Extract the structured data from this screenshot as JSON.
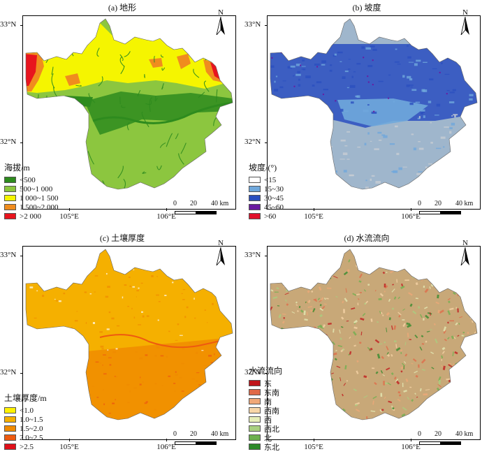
{
  "axes": {
    "lat_labels": [
      "33°N",
      "32°N"
    ],
    "lon_labels": [
      "105°E",
      "106°E"
    ]
  },
  "north_label": "N",
  "scale": {
    "labels": [
      "0",
      "20",
      "40 km"
    ]
  },
  "panels": [
    {
      "id": "a",
      "title": "(a) 地形",
      "legend_title": "海拔/m",
      "style": "elevation",
      "legend": [
        {
          "label": "<500",
          "color": "#2e8b1e"
        },
        {
          "label": "500~1 000",
          "color": "#8cc63f"
        },
        {
          "label": "1 000~1 500",
          "color": "#f5f500"
        },
        {
          "label": "1 500~2 000",
          "color": "#f08c1e"
        },
        {
          "label": ">2 000",
          "color": "#e8141e"
        }
      ]
    },
    {
      "id": "b",
      "title": "(b) 坡度",
      "legend_title": "坡度/(°)",
      "style": "slope",
      "legend": [
        {
          "label": "<15",
          "color": "#ffffff"
        },
        {
          "label": "15~30",
          "color": "#6fa8dc"
        },
        {
          "label": "30~45",
          "color": "#2a4fbf"
        },
        {
          "label": "45~60",
          "color": "#6a1aa0"
        },
        {
          "label": ">60",
          "color": "#e0102a"
        }
      ]
    },
    {
      "id": "c",
      "title": "(c) 土壤厚度",
      "legend_title": "土壤厚度/m",
      "style": "soil",
      "legend": [
        {
          "label": "<1.0",
          "color": "#fff200"
        },
        {
          "label": "1.0~1.5",
          "color": "#f5b000"
        },
        {
          "label": "1.5~2.0",
          "color": "#f08a00"
        },
        {
          "label": "2.0~2.5",
          "color": "#ee5a10"
        },
        {
          "label": ">2.5",
          "color": "#e0101a"
        }
      ]
    },
    {
      "id": "d",
      "title": "(d) 水流流向",
      "legend_title": "水流流向",
      "style": "flow",
      "legend": [
        {
          "label": "东",
          "color": "#c0141a"
        },
        {
          "label": "东南",
          "color": "#e06a48"
        },
        {
          "label": "南",
          "color": "#f0a878"
        },
        {
          "label": "西南",
          "color": "#f8d6a8"
        },
        {
          "label": "西",
          "color": "#e6eeb8"
        },
        {
          "label": "西北",
          "color": "#a8d080"
        },
        {
          "label": "北",
          "color": "#6cb04e"
        },
        {
          "label": "东北",
          "color": "#2e8a2a"
        }
      ]
    }
  ]
}
